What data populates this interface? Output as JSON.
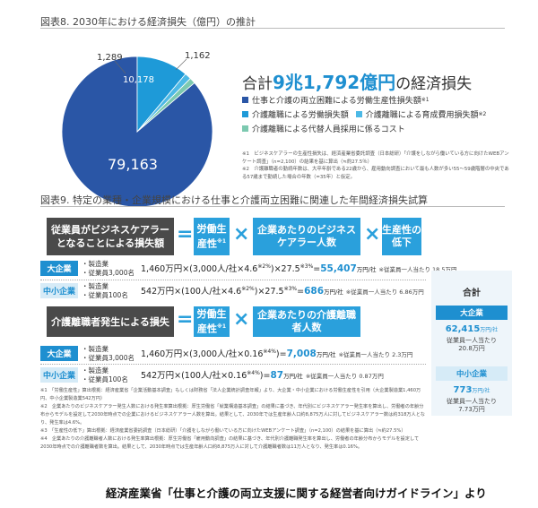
{
  "fig8": {
    "title": "図表8. 2030年における経済損失（億円）の推計",
    "pie_labels": {
      "a": "79,163",
      "b": "10,178",
      "c": "1,289",
      "d": "1,162"
    },
    "total_prefix": "合計",
    "total_value": "9兆1,792億円",
    "total_suffix": "の経済損失",
    "legend": [
      {
        "label": "仕事と介護の両立困難による労働生産性損失額",
        "note": "※1",
        "color": "#2a56a6"
      },
      {
        "label": "介護離職による労働損失額",
        "note": "",
        "color": "#1e9ad8"
      },
      {
        "label": "介護離職による育成費用損失額",
        "note": "※2",
        "color": "#4cb9e6"
      },
      {
        "label": "介護離職による代替人員採用に係るコスト",
        "note": "",
        "color": "#7cc9b0"
      }
    ],
    "footnotes": [
      "※1　ビジネスケアラーの生産性損失は、経済産業省委託調査（日本総研）「介護をしながら働いている方に向けたWEBアンケート調査」（n=2,100）の結果を基に算出（≒約27.5％）",
      "※2　介護離職者の勤続年数は、大卒年齢である22歳から、雇用動向調査において最も人数が多い55～59歳階層の中央である57歳まで勤続した場合の年数（=35年）と仮定。"
    ]
  },
  "chart_data": {
    "type": "pie",
    "title": "図表8. 2030年における経済損失（億円）の推計",
    "categories": [
      "仕事と介護の両立困難による労働生産性損失額",
      "介護離職による労働損失額",
      "介護離職による育成費用損失額",
      "介護離職による代替人員採用に係るコスト"
    ],
    "values": [
      79163,
      10178,
      1289,
      1162
    ],
    "colors": [
      "#2a56a6",
      "#1e9ad8",
      "#4cb9e6",
      "#7cc9b0"
    ]
  },
  "fig9": {
    "title": "図表9. 特定の業種・企業規模における仕事と介護両立困難に関連した年間経済損失試算",
    "section1": {
      "heading": "従業員がビジネスケアラーとなることによる損失額",
      "box1": "労働生産性",
      "box1_note": "※1",
      "box2": "企業あたりのビジネスケアラー人数",
      "box3": "生産性の低下",
      "large": {
        "tag": "大企業",
        "cond1": "・製造業",
        "cond2": "・従業員3,000名",
        "formula": "1,460万円×(3,000人/社×4.6",
        "formula_note": "※2%",
        "formula_mid": ")×27.5",
        "formula_note2": "※3%",
        "equals": "=",
        "result": "55,407",
        "result_unit": "万円/社",
        "per_person": "※従業員一人当たり 18.5万円"
      },
      "small": {
        "tag": "中小企業",
        "cond1": "・製造業",
        "cond2": "・従業員100名",
        "formula": "542万円×(100人/社×4.6",
        "formula_note": "※2%",
        "formula_mid": ")×27.5",
        "formula_note2": "※3%",
        "equals": "=",
        "result": "686",
        "result_unit": "万円/社",
        "per_person": "※従業員一人当たり 6.86万円"
      }
    },
    "section2": {
      "heading": "介護離職者発生による損失",
      "box1": "労働生産性",
      "box1_note": "※1",
      "box2": "企業あたりの介護離職者人数",
      "large": {
        "tag": "大企業",
        "cond1": "・製造業",
        "cond2": "・従業員3,000名",
        "formula": "1,460万円×(3,000人/社×0.16",
        "formula_note": "※4%",
        "formula_mid": ")",
        "equals": "=",
        "result": "7,008",
        "result_unit": "万円/社",
        "per_person": "※従業員一人当たり 2.3万円"
      },
      "small": {
        "tag": "中小企業",
        "cond1": "・製造業",
        "cond2": "・従業員100名",
        "formula": "542万円×(100人/社×0.16",
        "formula_note": "※4%",
        "formula_mid": ")",
        "equals": "=",
        "result": "87",
        "result_unit": "万円/社",
        "per_person": "※従業員一人当たり 0.87万円"
      }
    },
    "summary": {
      "title": "合計",
      "large_tag": "大企業",
      "large_value": "62,415",
      "large_unit": "万円/社",
      "large_note1": "従業員一人当たり",
      "large_note2": "20.8万円",
      "small_tag": "中小企業",
      "small_value": "773",
      "small_unit": "万円/社",
      "small_note1": "従業員一人当たり",
      "small_note2": "7.73万円"
    },
    "footnotes": [
      "※1　「労働生産性」算出根拠：経済産業省「企業活動基本調査」もしくは財務省「法人企業統計調査年報」より、大企業・中小企業における労働生産性を引用（大企業製造業1,460万円、中小企業製造業542万円）",
      "※2　企業あたりのビジネスケアラー発生人数における発生率算出根拠：厚生労働省「就業構造基本調査」の結果に基づき、年代別にビジネスケアラー発生率を算出し、労働者の年齢分布からモデルを設定して2030年時点での企業におけるビジネスケアラー人数を算出。結果として、2030年では生産年齢人口約8,875万人に対してビジネスケアラー数は約318万人となり、発生率は4.6%。",
      "※3　「生産性の低下」算出根拠：経済産業省委託調査（日本総研）「介護をしながら働いている方に向けたWEBアンケート調査」（n=2,100）の結果を基に算出（≒約27.5%）",
      "※4　企業あたりの介護離職者人数における発生率算出根拠：厚生労働省「雇用動向調査」の結果に基づき、年代別介護離職発生率を算出し、労働者の年齢分布からモデルを設定して2030年時点での介護離職者数を算出。結果として、2030年時点では生産年齢人口約8,875万人に対して介護離職者数は11万人となり、発生率は0.16%。"
    ]
  },
  "source": "経済産業省「仕事と介護の両立支援に関する経営者向けガイドライン」より"
}
